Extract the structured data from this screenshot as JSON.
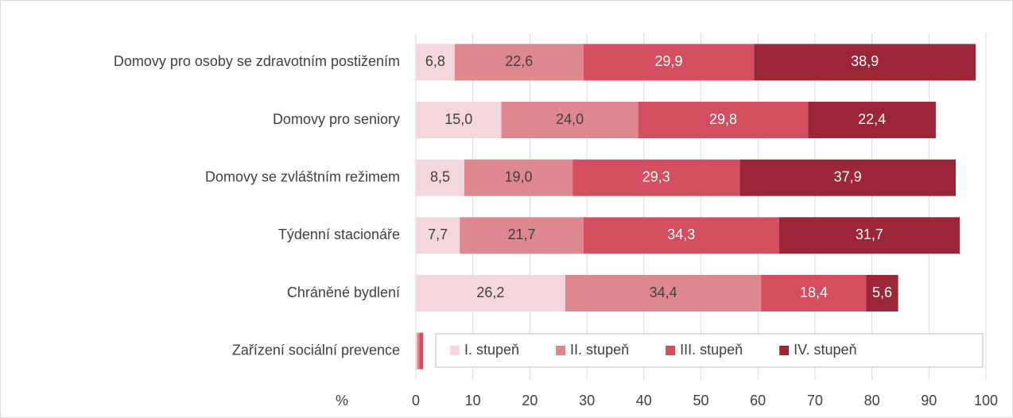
{
  "chart_data": {
    "type": "stacked_barh",
    "categories": [
      "Domovy pro osoby se zdravotním postižením",
      "Domovy pro seniory",
      "Domovy se zvláštním režimem",
      "Týdenní stacionáře",
      "Chráněné bydlení",
      "Zařízení sociální prevence"
    ],
    "series": [
      {
        "name": "I. stupeň",
        "color": "#f4d7dc",
        "values": [
          6.8,
          15.0,
          8.5,
          7.7,
          26.2,
          0.2
        ],
        "value_labels": [
          "6,8",
          "15,0",
          "8,5",
          "7,7",
          "26,2",
          null
        ]
      },
      {
        "name": "II. stupeň",
        "color": "#df878f",
        "values": [
          22.6,
          24.0,
          19.0,
          21.7,
          34.4,
          0.4
        ],
        "value_labels": [
          "22,6",
          "24,0",
          "19,0",
          "21,7",
          "34,4",
          null
        ]
      },
      {
        "name": "III. stupeň",
        "color": "#d44e60",
        "values": [
          29.9,
          29.8,
          29.3,
          34.3,
          18.4,
          0.7
        ],
        "value_labels": [
          "29,9",
          "29,8",
          "29,3",
          "34,3",
          "18,4",
          null
        ]
      },
      {
        "name": "IV. stupeň",
        "color": "#9b2638",
        "values": [
          38.9,
          22.4,
          37.9,
          31.7,
          5.6,
          0.0
        ],
        "value_labels": [
          "38,9",
          "22,4",
          "37,9",
          "31,7",
          "5,6",
          null
        ]
      }
    ],
    "xlabel": "%",
    "xlim": [
      0,
      100
    ],
    "xticks": [
      0,
      10,
      20,
      30,
      40,
      50,
      60,
      70,
      80,
      90,
      100
    ],
    "grid": true,
    "legend": "lower right"
  }
}
